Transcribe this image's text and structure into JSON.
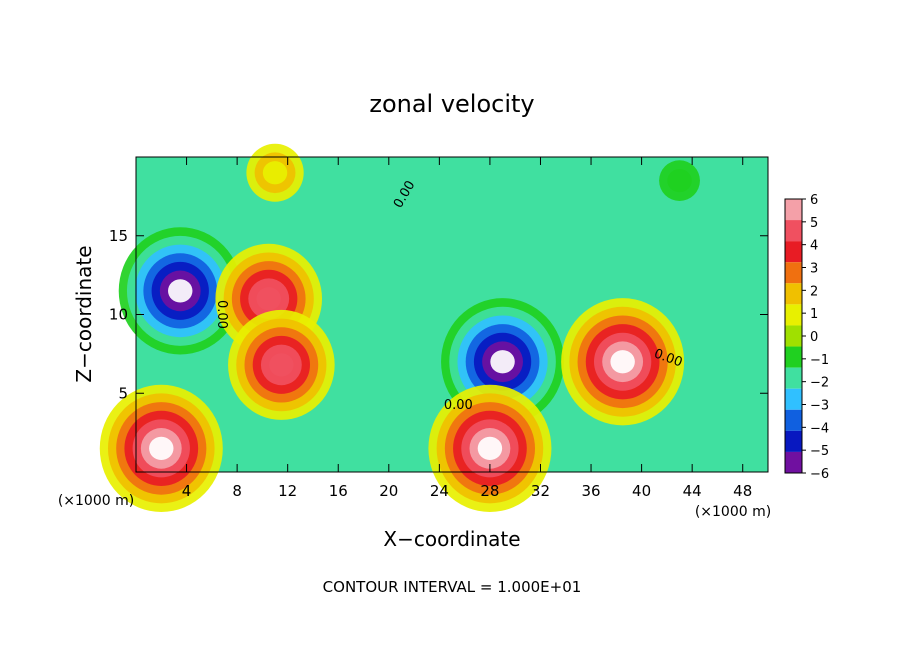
{
  "chart_data": {
    "type": "heatmap",
    "title": "zonal velocity",
    "xlabel": "X−coordinate",
    "ylabel": "Z−coordinate",
    "x_scale_note": "(×1000 m)",
    "y_scale_note": "(×1000 m)",
    "xlim": [
      0,
      50
    ],
    "ylim": [
      0,
      20
    ],
    "x_ticks": [
      4,
      8,
      12,
      16,
      20,
      24,
      28,
      32,
      36,
      40,
      44,
      48
    ],
    "y_ticks": [
      5,
      10,
      15
    ],
    "colorbar": {
      "ticks": [
        6,
        5,
        4,
        3,
        2,
        1,
        0,
        -1,
        -2,
        -3,
        -4,
        -5,
        -6
      ],
      "labels": [
        "6",
        "5",
        "4",
        "3",
        "2",
        "1",
        "0",
        "−1",
        "−2",
        "−3",
        "−4",
        "−5",
        "−6"
      ],
      "range": [
        -6,
        6
      ],
      "colors": [
        "#f4a0a8",
        "#f05060",
        "#e81c24",
        "#f07010",
        "#f0c000",
        "#e8f000",
        "#a0e000",
        "#20d020",
        "#40e0a0",
        "#30c0ff",
        "#1060e0",
        "#0818c0",
        "#7010a0"
      ]
    },
    "contour_labels": [
      "0.00",
      "0.00",
      "0.00",
      "0.00"
    ],
    "features": [
      {
        "x": 3.5,
        "z": 11.5,
        "value": -8,
        "kind": "jet core"
      },
      {
        "x": 10.5,
        "z": 11.0,
        "value": 5,
        "kind": "jet core"
      },
      {
        "x": 11.5,
        "z": 6.8,
        "value": 5,
        "kind": "jet core"
      },
      {
        "x": 29.0,
        "z": 7.0,
        "value": -8,
        "kind": "jet core"
      },
      {
        "x": 38.5,
        "z": 7.0,
        "value": 8,
        "kind": "jet core"
      },
      {
        "x": 28.0,
        "z": 1.5,
        "value": 8,
        "kind": "jet core"
      },
      {
        "x": 2.0,
        "z": 1.5,
        "value": 8,
        "kind": "jet core"
      },
      {
        "x": 11.0,
        "z": 19.0,
        "value": 1.5,
        "kind": "jet core"
      },
      {
        "x": 43.0,
        "z": 18.5,
        "value": -1,
        "kind": "jet core"
      }
    ]
  },
  "footer": {
    "contour_interval": "CONTOUR INTERVAL = 1.000E+01"
  }
}
